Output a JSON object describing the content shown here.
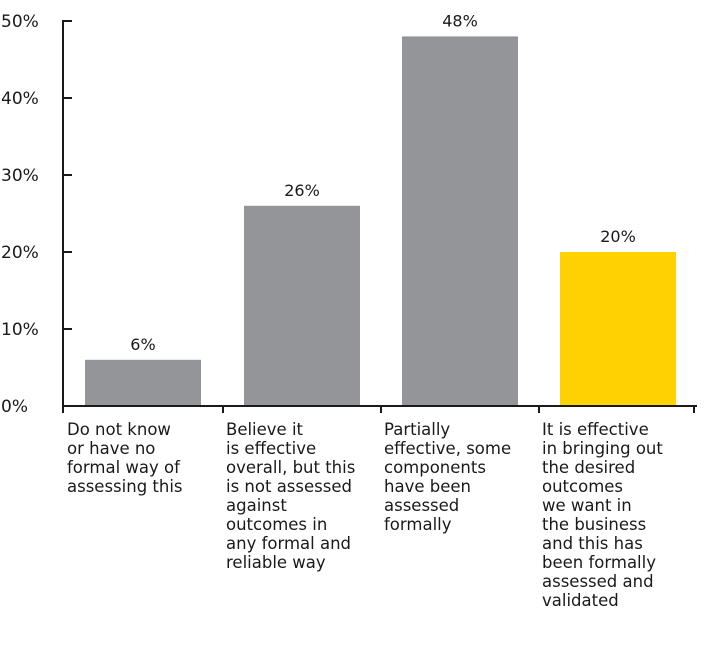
{
  "chart_data": {
    "type": "bar",
    "categories": [
      "Do not know\nor have no\nformal way of\nassessing this",
      "Believe it\nis effective\noverall, but this\nis not assessed\nagainst\noutcomes in\nany formal and\nreliable way",
      "Partially\neffective, some\ncomponents\nhave been\nassessed\nformally",
      "It is effective\nin bringing out\nthe desired\noutcomes\nwe want in\nthe business\nand this has\nbeen formally\nassessed and\nvalidated"
    ],
    "values": [
      6,
      26,
      48,
      20
    ],
    "data_labels": [
      "6%",
      "26%",
      "48%",
      "20%"
    ],
    "bar_colors": [
      "#939598",
      "#939598",
      "#939598",
      "#FFD200"
    ],
    "ylim": [
      0,
      50
    ],
    "yticks": [
      0,
      10,
      20,
      30,
      40,
      50
    ],
    "ytick_labels": [
      "0%",
      "10%",
      "20%",
      "30%",
      "40%",
      "50%"
    ],
    "title": "",
    "xlabel": "",
    "ylabel": "",
    "grid": false,
    "legend": "none"
  },
  "colors": {
    "axis": "#1a1a1a"
  }
}
